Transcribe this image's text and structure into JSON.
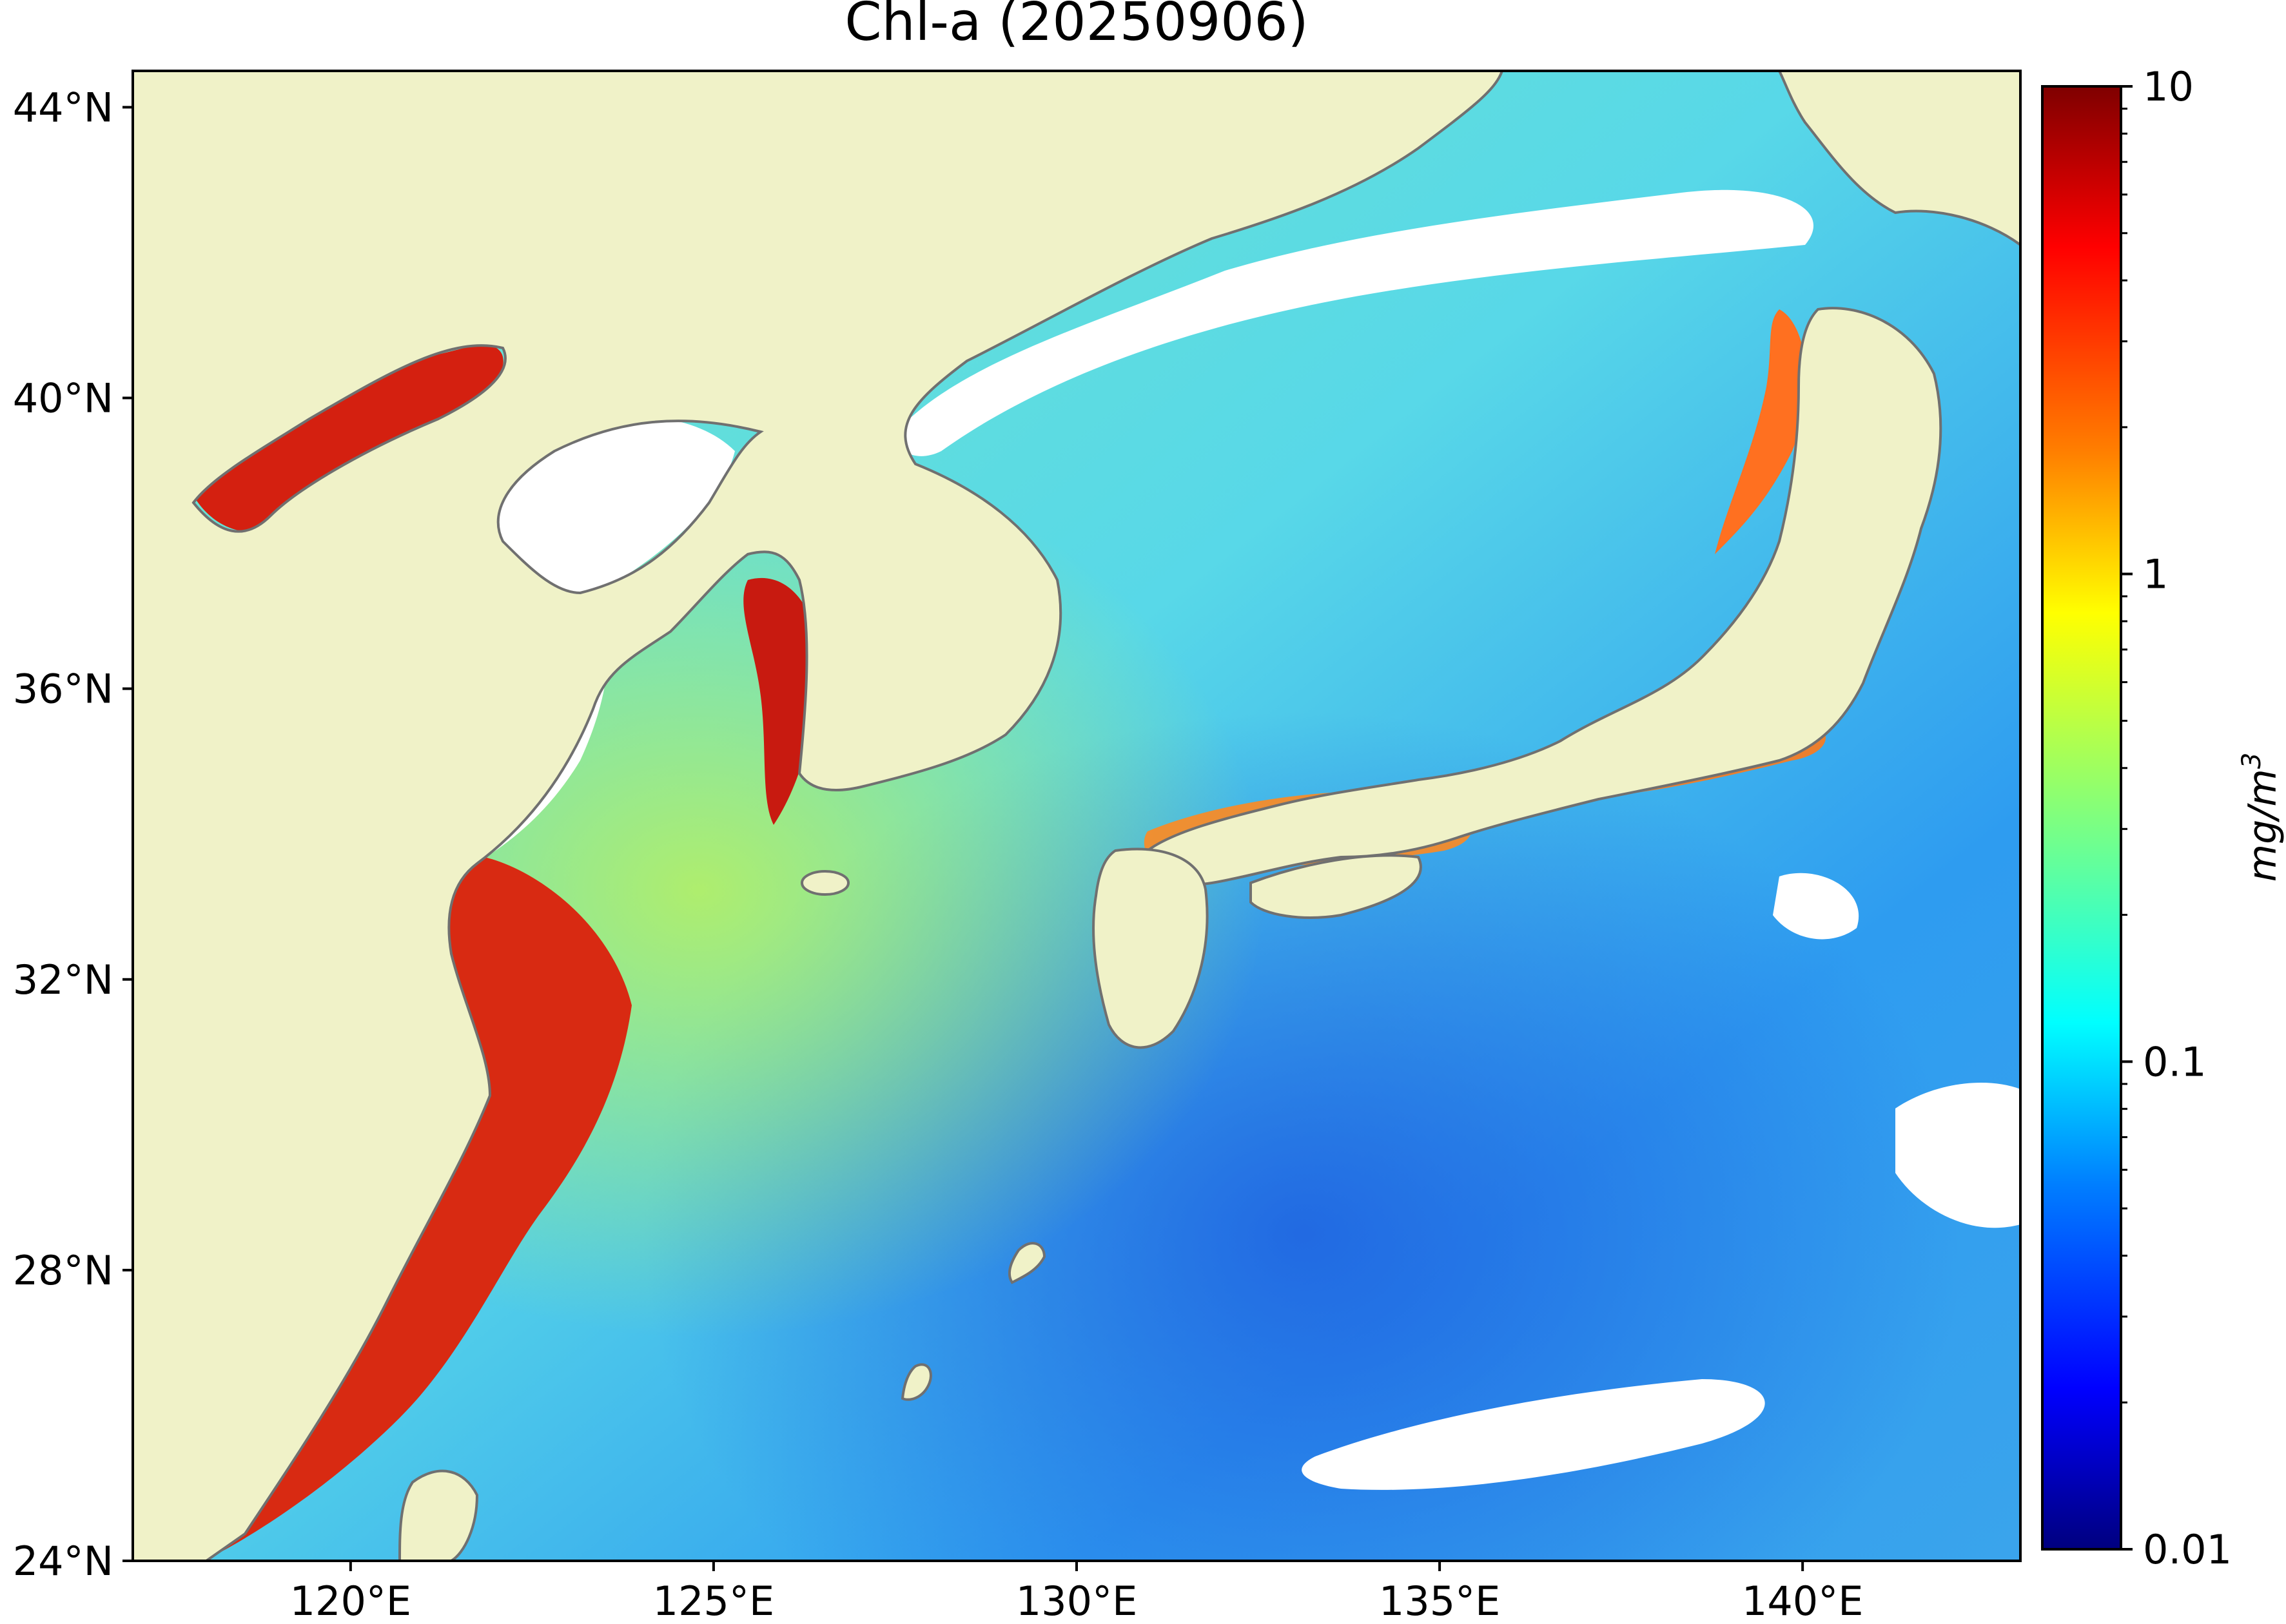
{
  "title": "Chl-a (20250906)",
  "map": {
    "lat_range": [
      24,
      44.5
    ],
    "lon_range": [
      117,
      143
    ],
    "lat_ticks": [
      {
        "value": 44,
        "label": "44°N"
      },
      {
        "value": 40,
        "label": "40°N"
      },
      {
        "value": 36,
        "label": "36°N"
      },
      {
        "value": 32,
        "label": "32°N"
      },
      {
        "value": 28,
        "label": "28°N"
      },
      {
        "value": 24,
        "label": "24°N"
      }
    ],
    "lon_ticks": [
      {
        "value": 120,
        "label": "120°E"
      },
      {
        "value": 125,
        "label": "125°E"
      },
      {
        "value": 130,
        "label": "130°E"
      },
      {
        "value": 135,
        "label": "135°E"
      },
      {
        "value": 140,
        "label": "140°E"
      }
    ],
    "colors": {
      "land": "#f0f2c8",
      "coastline": "#707070",
      "no_data": "#ffffff"
    }
  },
  "colorbar": {
    "scale": "log",
    "range": [
      0.01,
      10
    ],
    "ticks": [
      {
        "value": 10,
        "label": "10"
      },
      {
        "value": 1,
        "label": "1"
      },
      {
        "value": 0.1,
        "label": "0.1"
      },
      {
        "value": 0.01,
        "label": "0.01"
      }
    ],
    "unit": "mg/m",
    "unit_exponent": "3",
    "colormap": "jet",
    "colormap_stops": [
      "#00007f",
      "#0000ff",
      "#007fff",
      "#00ffff",
      "#7fff7f",
      "#ffff00",
      "#ff7f00",
      "#ff0000",
      "#7f0000"
    ]
  }
}
